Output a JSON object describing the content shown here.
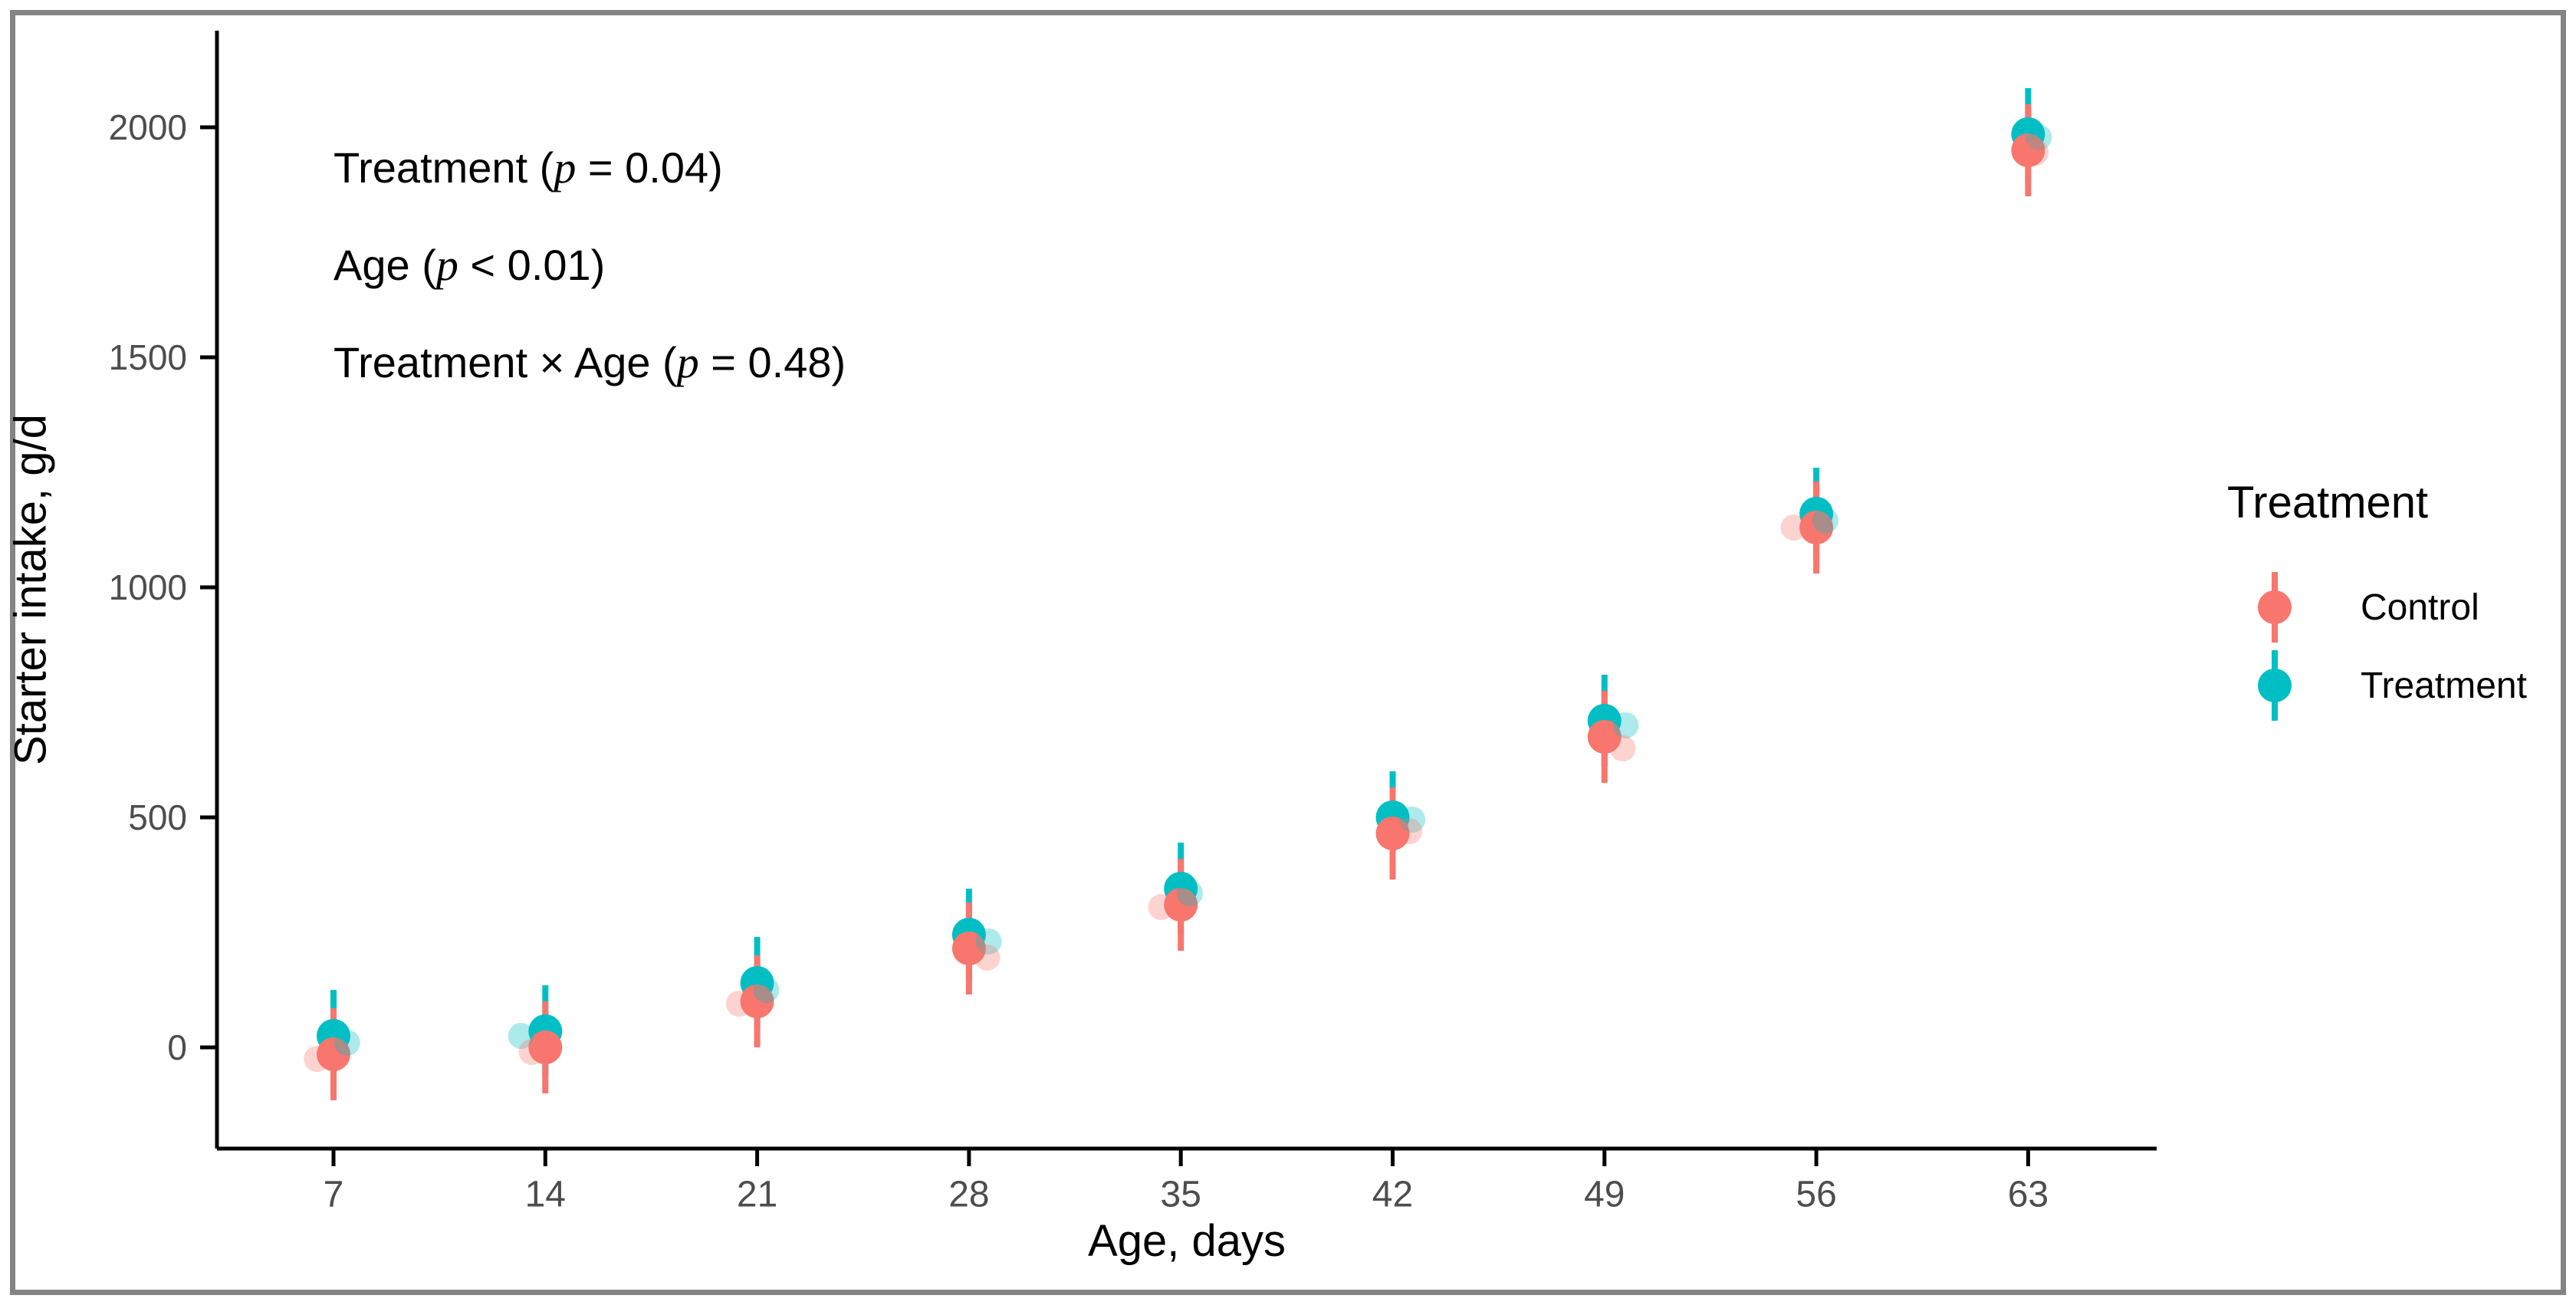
{
  "figure": {
    "background": "#ffffff",
    "frame_color": "#848484",
    "axis_line_color": "#000000",
    "tick_label_color": "#4D4D4D",
    "annotations": {
      "line1": {
        "pre": "Treatment (",
        "p": "p",
        "post": " = 0.04)"
      },
      "line2": {
        "pre": "Age (",
        "p": "p",
        "post": " < 0.01)"
      },
      "line3": {
        "pre": "Treatment × Age (",
        "p": "p",
        "post": " = 0.48)"
      }
    }
  },
  "chart_data": {
    "type": "scatter",
    "subtype": "pointrange",
    "title": "",
    "xlabel": "Age, days",
    "ylabel": "Starter intake, g/d",
    "x": [
      7,
      14,
      21,
      28,
      35,
      42,
      49,
      56,
      63
    ],
    "yticks": [
      0,
      500,
      1000,
      1500,
      2000
    ],
    "ylim": [
      -220,
      2215
    ],
    "grid": false,
    "legend": {
      "title": "Treatment",
      "position": "right",
      "entries": [
        "Control",
        "Treatment"
      ]
    },
    "error_bar_halfwidth": 100,
    "series": [
      {
        "name": "Control",
        "color": "#F8766D",
        "values": [
          -15,
          0,
          100,
          215,
          310,
          465,
          675,
          1130,
          1950
        ],
        "raw_points": [
          {
            "dx": -0.55,
            "v": -25
          },
          {
            "dx": -0.45,
            "v": -10
          },
          {
            "dx": -0.6,
            "v": 95
          },
          {
            "dx": 0.6,
            "v": 195
          },
          {
            "dx": -0.65,
            "v": 305
          },
          {
            "dx": 0.55,
            "v": 470
          },
          {
            "dx": 0.6,
            "v": 650
          },
          {
            "dx": -0.75,
            "v": 1130
          },
          {
            "dx": 0.25,
            "v": 1945
          }
        ]
      },
      {
        "name": "Treatment",
        "color": "#00BFC4",
        "values": [
          25,
          35,
          140,
          245,
          345,
          500,
          710,
          1160,
          1985
        ],
        "raw_points": [
          {
            "dx": 0.45,
            "v": 10
          },
          {
            "dx": -0.8,
            "v": 25
          },
          {
            "dx": 0.3,
            "v": 125
          },
          {
            "dx": 0.65,
            "v": 230
          },
          {
            "dx": 0.3,
            "v": 335
          },
          {
            "dx": 0.65,
            "v": 495
          },
          {
            "dx": 0.7,
            "v": 700
          },
          {
            "dx": 0.3,
            "v": 1145
          },
          {
            "dx": 0.35,
            "v": 1978
          }
        ]
      }
    ]
  }
}
